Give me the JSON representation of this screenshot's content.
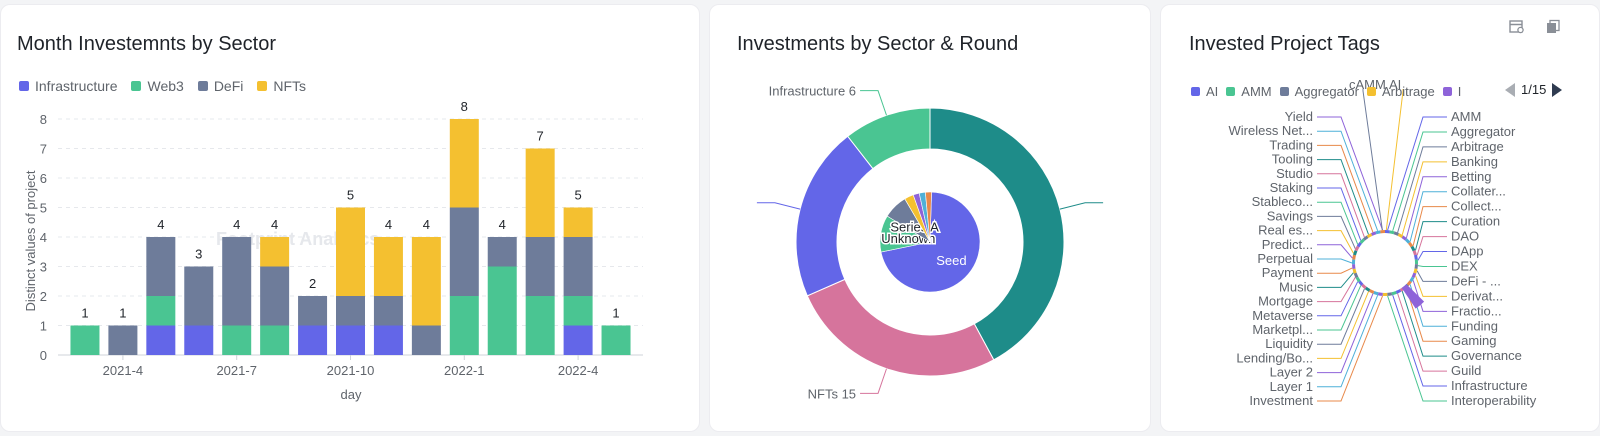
{
  "colors": {
    "infrastructure": "#6366e8",
    "web3": "#4ac592",
    "defi": "#6e7c9a",
    "nfts": "#f4c030",
    "teal": "#1e8c89",
    "mint": "#4ac592",
    "purple": "#6366e8",
    "pink": "#d6749c"
  },
  "panels": {
    "sector_month": {
      "title": "Month Investemnts by Sector"
    },
    "sector_round": {
      "title": "Investments by Sector & Round"
    },
    "tags": {
      "title": "Invested Project Tags",
      "pager": "1/15"
    }
  },
  "watermark": "Footprint Analytics",
  "icons": [
    "data-table-icon",
    "copy-icon"
  ],
  "chart_data": [
    {
      "type": "bar",
      "stacked": true,
      "title": "Month Investemnts by Sector",
      "xlabel": "day",
      "ylabel": "Distinct values of project",
      "ylim": [
        0,
        8
      ],
      "yticks": [
        0,
        1,
        2,
        3,
        4,
        5,
        6,
        7,
        8
      ],
      "xticks": [
        "2021-4",
        "2021-7",
        "2021-10",
        "2022-1",
        "2022-4"
      ],
      "categories": [
        "2021-3",
        "2021-4",
        "2021-5",
        "2021-6",
        "2021-7",
        "2021-8",
        "2021-9",
        "2021-10",
        "2021-11",
        "2021-12",
        "2022-1",
        "2022-2",
        "2022-3",
        "2022-4",
        "2022-5"
      ],
      "series": [
        {
          "name": "Infrastructure",
          "values": [
            0,
            0,
            1,
            1,
            0,
            0,
            1,
            1,
            1,
            0,
            0,
            0,
            0,
            1,
            0
          ]
        },
        {
          "name": "Web3",
          "values": [
            1,
            0,
            1,
            0,
            1,
            1,
            0,
            0,
            0,
            0,
            2,
            3,
            2,
            1,
            1
          ]
        },
        {
          "name": "DeFi",
          "values": [
            0,
            1,
            2,
            2,
            3,
            2,
            1,
            1,
            1,
            1,
            3,
            1,
            2,
            2,
            0
          ]
        },
        {
          "name": "NFTs",
          "values": [
            0,
            0,
            0,
            0,
            0,
            1,
            0,
            3,
            2,
            3,
            3,
            0,
            3,
            1,
            0
          ]
        }
      ],
      "totals": [
        1,
        1,
        4,
        3,
        4,
        4,
        2,
        5,
        4,
        4,
        8,
        4,
        7,
        5,
        1
      ],
      "legend": "top-left",
      "grid": true
    },
    {
      "type": "pie",
      "title": "Investments by Sector & Round",
      "outer_ring": [
        {
          "name": "",
          "value": 24,
          "color": "#1e8c89"
        },
        {
          "name": "NFTs",
          "value": 15,
          "color": "#d6749c"
        },
        {
          "name": "",
          "value": 12,
          "color": "#6366e8"
        },
        {
          "name": "Infrastructure",
          "value": 6,
          "color": "#4ac592"
        }
      ],
      "inner_pie": [
        {
          "name": "Seed",
          "value": 36,
          "color": "#6366e8"
        },
        {
          "name": "Unknown",
          "value": 6,
          "color": "#4ac592"
        },
        {
          "name": "Series A",
          "value": 4,
          "color": "#6e7c9a"
        },
        {
          "name": "",
          "value": 1.5,
          "color": "#f4c030"
        },
        {
          "name": "",
          "value": 1,
          "color": "#8e63d9"
        },
        {
          "name": "",
          "value": 1,
          "color": "#4fb0d8"
        },
        {
          "name": "",
          "value": 1,
          "color": "#e8894a"
        }
      ],
      "outer_labels": [
        {
          "text": "Infrastructure 6",
          "slice": 3
        },
        {
          "text": "NFTs 15",
          "slice": 1
        }
      ]
    },
    {
      "type": "pie",
      "title": "Invested Project Tags",
      "legend": [
        "AI",
        "AMM",
        "Aggregator",
        "Arbitrage",
        "I"
      ],
      "legend_colors": [
        "#6366e8",
        "#4ac592",
        "#6e7c9a",
        "#f4c030",
        "#8e63d9"
      ],
      "tags": [
        "cAMM",
        "AI",
        "AMM",
        "Aggregator",
        "Arbitrage",
        "Banking",
        "Betting",
        "Collater...",
        "Collect...",
        "Curation",
        "DAO",
        "DApp",
        "DEX",
        "DeFi - ...",
        "Derivat...",
        "Fractio...",
        "Funding",
        "Gaming",
        "Governance",
        "Guild",
        "Infrastructure",
        "Interoperability",
        "Investment",
        "Layer 1",
        "Layer 2",
        "Lending/Bo...",
        "Liquidity",
        "Marketpl...",
        "Metaverse",
        "Mortgage",
        "Music",
        "Payment",
        "Perpetual",
        "Predict...",
        "Real es...",
        "Savings",
        "Stableco...",
        "Staking",
        "Studio",
        "Tooling",
        "Trading",
        "Wireless Net...",
        "Yield"
      ],
      "pager": "1/15"
    }
  ]
}
